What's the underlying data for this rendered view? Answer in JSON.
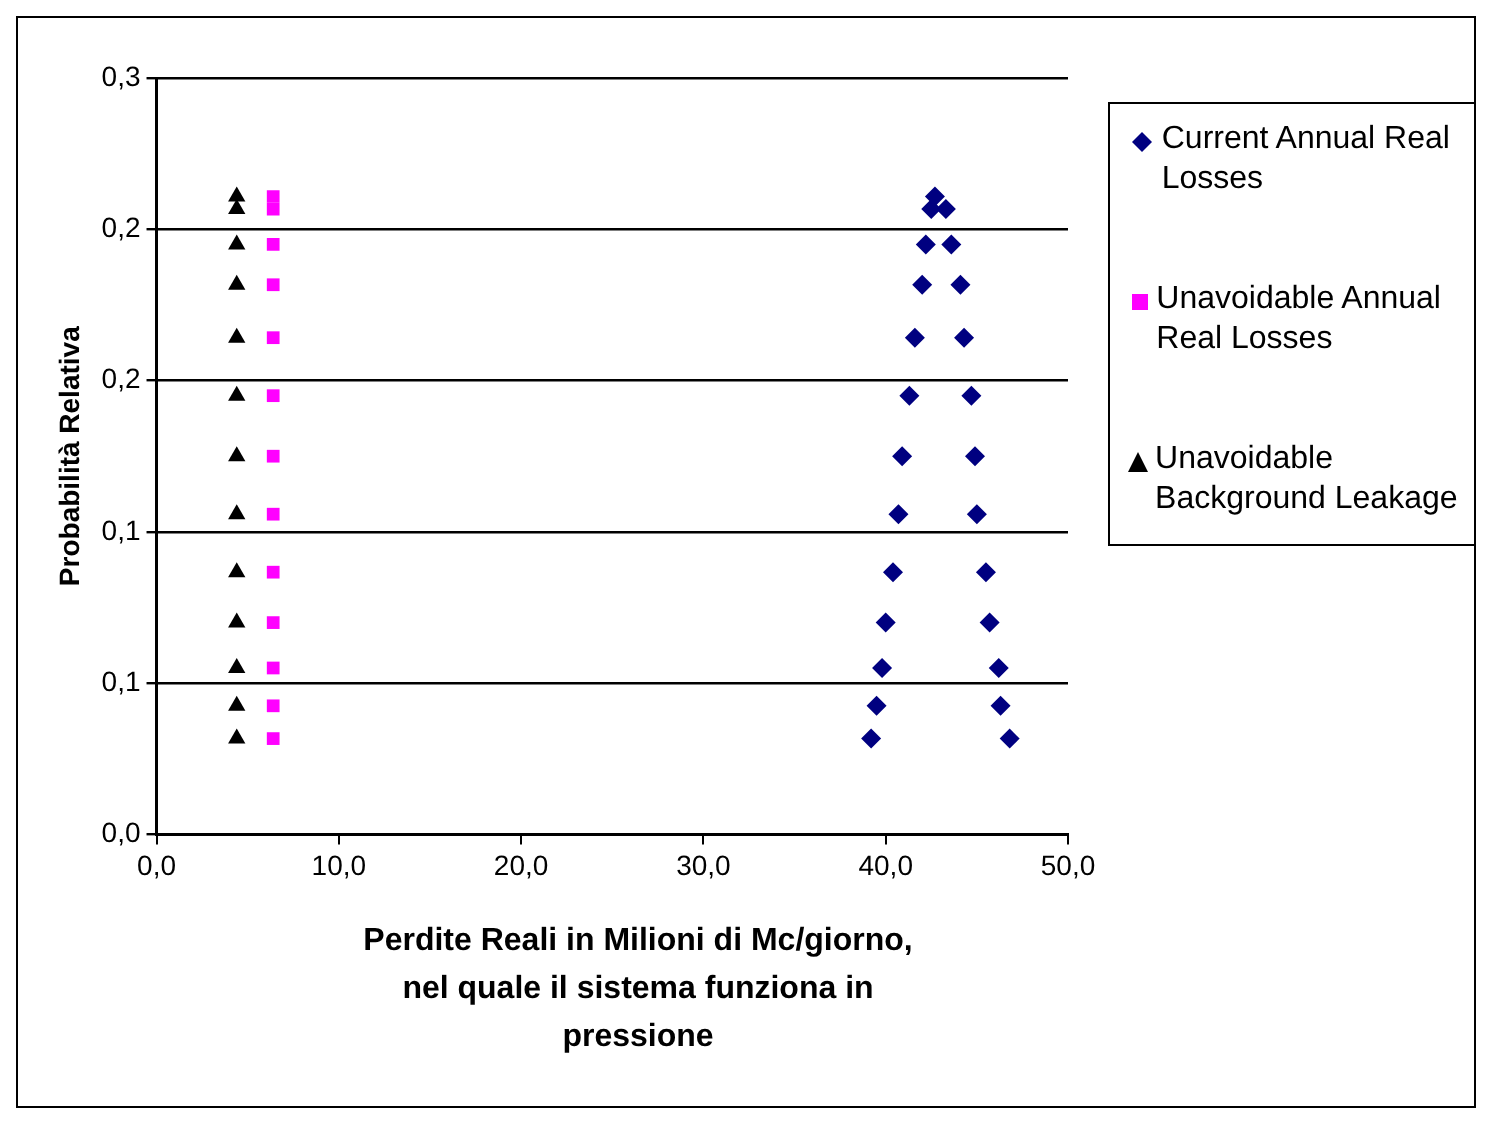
{
  "chart_data": {
    "type": "scatter",
    "xlabel": "Perdite Reali in Milioni di Mc/giorno, nel quale il sistema funziona in pressione",
    "ylabel": "Probabilità Relativa",
    "xlim": [
      0,
      50
    ],
    "xticks": [
      {
        "value": 0,
        "label": "0,0"
      },
      {
        "value": 10,
        "label": "10,0"
      },
      {
        "value": 20,
        "label": "20,0"
      },
      {
        "value": 30,
        "label": "30,0"
      },
      {
        "value": 40,
        "label": "40,0"
      },
      {
        "value": 50,
        "label": "50,0"
      }
    ],
    "ylim": [
      0,
      0.3
    ],
    "yticks": [
      {
        "value": 0,
        "label": "0,0"
      },
      {
        "value": 0.06,
        "label": "0,1"
      },
      {
        "value": 0.12,
        "label": "0,1"
      },
      {
        "value": 0.18,
        "label": "0,2"
      },
      {
        "value": 0.24,
        "label": "0,2"
      },
      {
        "value": 0.3,
        "label": "0,3"
      }
    ],
    "grid": "y",
    "legend": "right",
    "series": [
      {
        "name": "Current Annual Real Losses",
        "color": "#000080",
        "marker": "diamond",
        "x": [
          39.2,
          39.5,
          39.8,
          40.0,
          40.4,
          40.7,
          40.9,
          41.3,
          41.6,
          42.0,
          42.2,
          42.5,
          42.7,
          46.8,
          46.3,
          46.2,
          45.7,
          45.5,
          45.0,
          44.9,
          44.7,
          44.3,
          44.1,
          43.6,
          43.3
        ],
        "values": [
          0.038,
          0.051,
          0.066,
          0.084,
          0.104,
          0.127,
          0.15,
          0.174,
          0.197,
          0.218,
          0.234,
          0.248,
          0.253,
          0.038,
          0.051,
          0.066,
          0.084,
          0.104,
          0.127,
          0.15,
          0.174,
          0.197,
          0.218,
          0.234,
          0.248
        ]
      },
      {
        "name": "Unavoidable Annual Real Losses",
        "color": "#ff00ff",
        "marker": "square",
        "x": [
          6.4,
          6.4,
          6.4,
          6.4,
          6.4,
          6.4,
          6.4,
          6.4,
          6.4,
          6.4,
          6.4,
          6.4,
          6.4
        ],
        "values": [
          0.038,
          0.051,
          0.066,
          0.084,
          0.104,
          0.127,
          0.15,
          0.174,
          0.197,
          0.218,
          0.234,
          0.248,
          0.253
        ]
      },
      {
        "name": "Unavoidable Background Leakage",
        "color": "#000000",
        "marker": "triangle",
        "x": [
          4.4,
          4.4,
          4.4,
          4.4,
          4.4,
          4.4,
          4.4,
          4.4,
          4.4,
          4.4,
          4.4,
          4.4,
          4.4
        ],
        "values": [
          0.038,
          0.051,
          0.066,
          0.084,
          0.104,
          0.127,
          0.15,
          0.174,
          0.197,
          0.218,
          0.234,
          0.248,
          0.253
        ]
      }
    ]
  }
}
